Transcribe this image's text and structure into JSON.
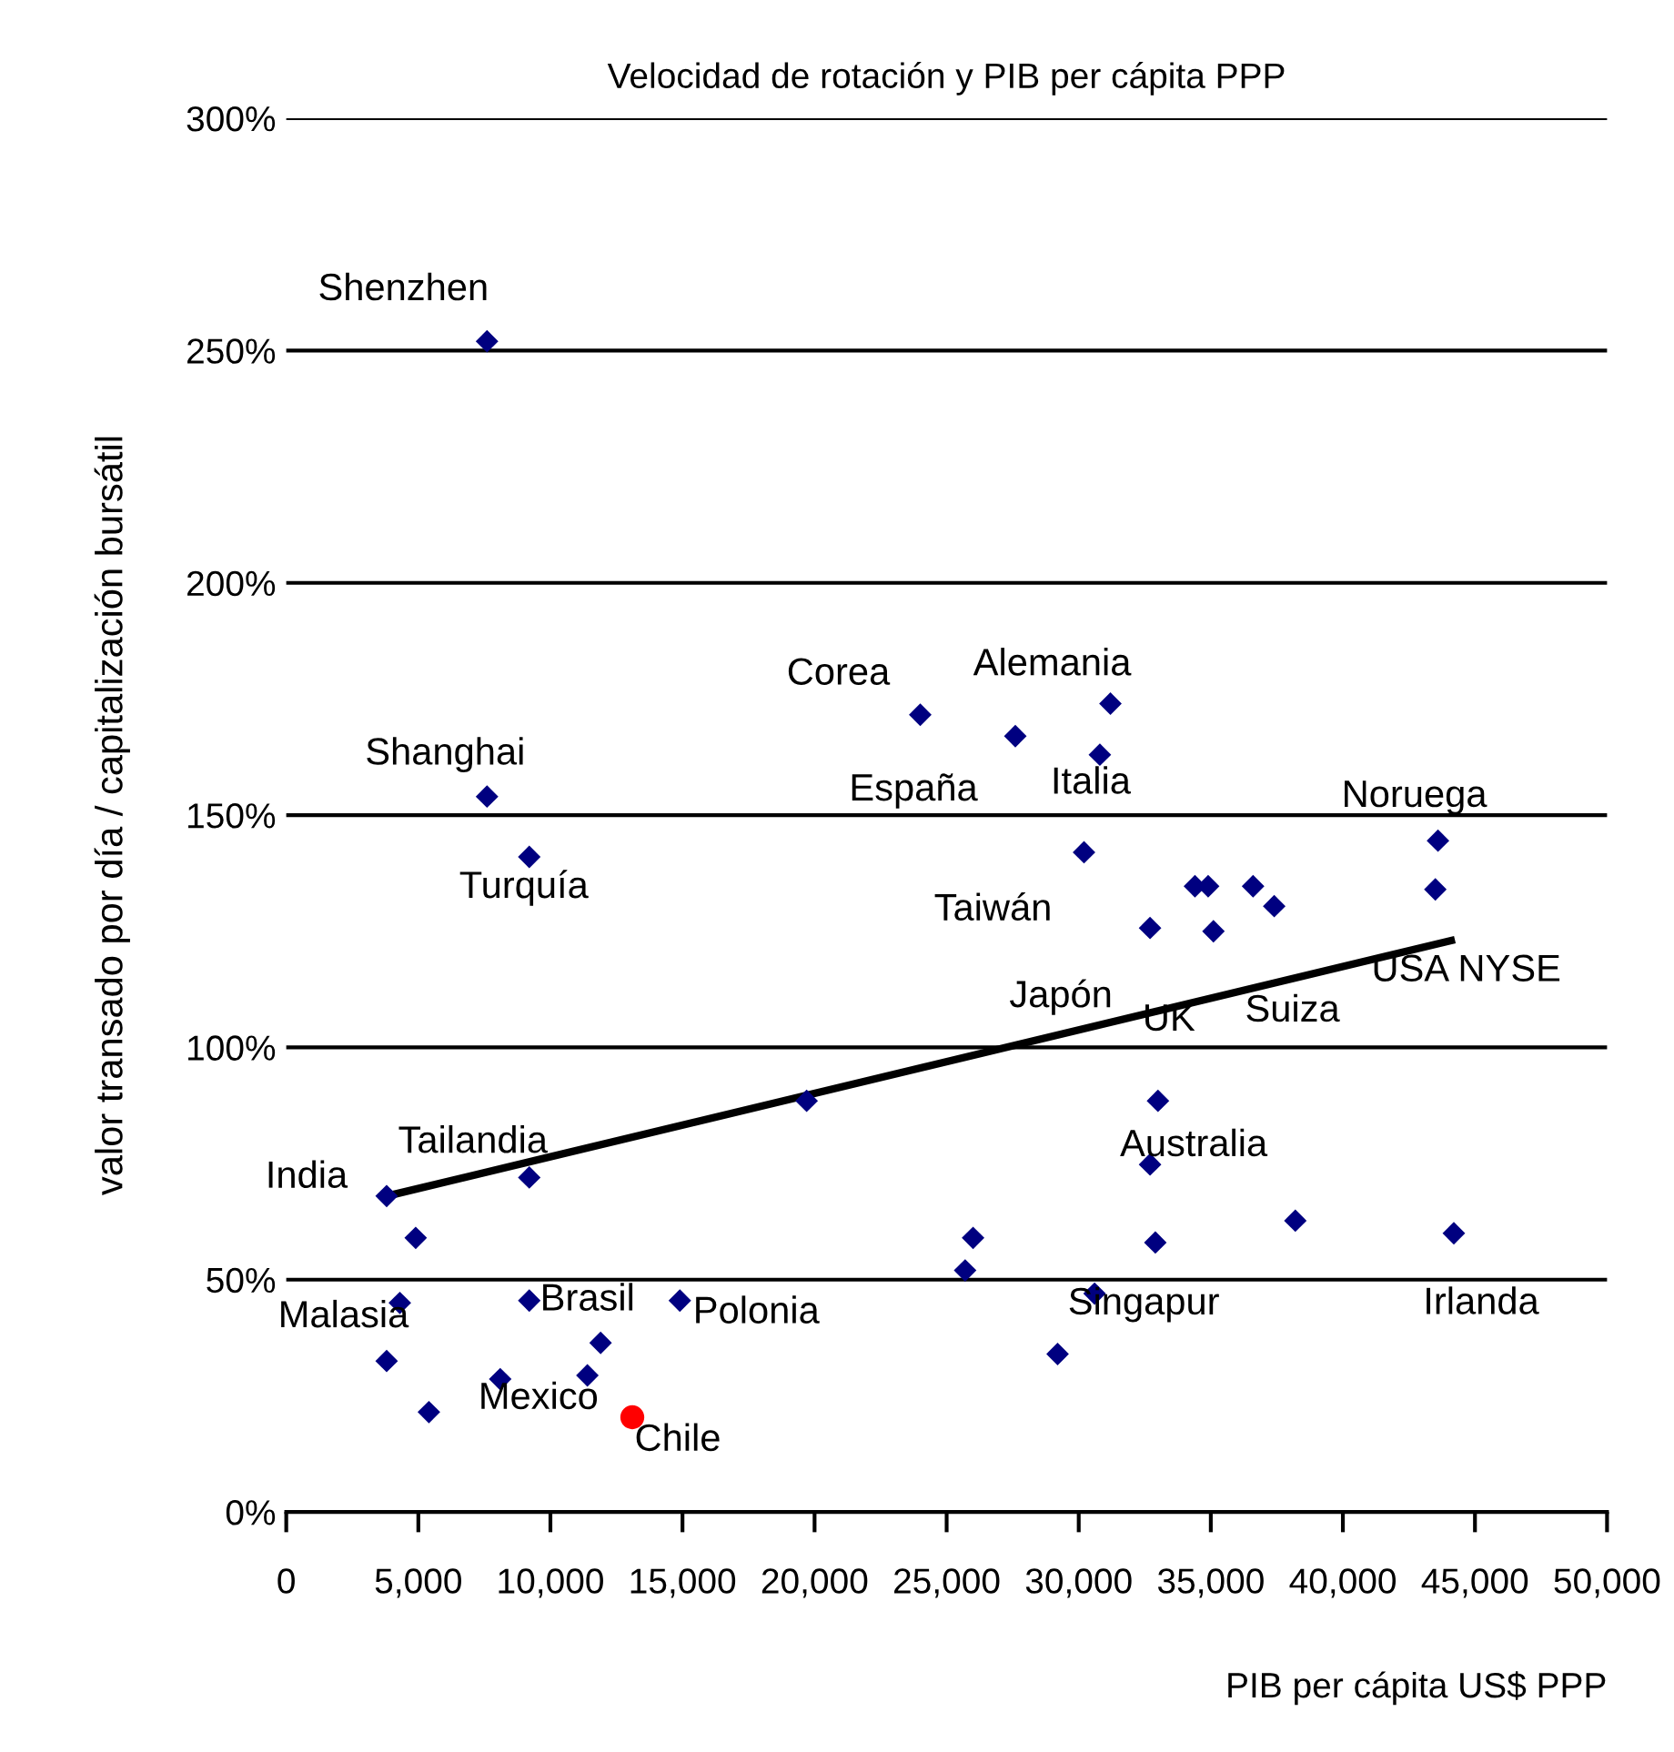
{
  "chart_data": {
    "type": "scatter",
    "title": "Velocidad de rotación y PIB per cápita PPP",
    "xlabel": "PIB per cápita US$ PPP",
    "ylabel": "valor transado por día / capitalización bursátil",
    "xlim": [
      0,
      50000
    ],
    "xticks": [
      {
        "value": 0,
        "label": "0"
      },
      {
        "value": 5000,
        "label": "5,000"
      },
      {
        "value": 10000,
        "label": "10,000"
      },
      {
        "value": 15000,
        "label": "15,000"
      },
      {
        "value": 20000,
        "label": "20,000"
      },
      {
        "value": 25000,
        "label": "25,000"
      },
      {
        "value": 30000,
        "label": "30,000"
      },
      {
        "value": 35000,
        "label": "35,000"
      },
      {
        "value": 40000,
        "label": "40,000"
      },
      {
        "value": 45000,
        "label": "45,000"
      },
      {
        "value": 50000,
        "label": "50,000"
      }
    ],
    "ylim": [
      0,
      300
    ],
    "yticks": [
      {
        "value": 0,
        "label": "0%"
      },
      {
        "value": 50,
        "label": "50%"
      },
      {
        "value": 100,
        "label": "100%"
      },
      {
        "value": 150,
        "label": "150%"
      },
      {
        "value": 200,
        "label": "200%"
      },
      {
        "value": 250,
        "label": "250%"
      },
      {
        "value": 300,
        "label": "300%"
      }
    ],
    "grid": "y",
    "legend": false,
    "series": [
      {
        "marker": "diamond",
        "color": "#000080",
        "x": [
          7600,
          7600,
          9200,
          3800,
          9200,
          4900,
          4300,
          9200,
          3800,
          5400,
          8100,
          11900,
          11400,
          14900,
          19700,
          24000,
          27600,
          31200,
          30800,
          30200,
          32700,
          34400,
          34900,
          36600,
          37400,
          35100,
          43600,
          43500,
          33000,
          32700,
          32900,
          38200,
          44200,
          26000,
          25700,
          30600,
          29200
        ],
        "values": [
          252,
          154,
          141,
          68,
          72,
          59,
          45,
          45.5,
          32.5,
          21.5,
          28.6,
          36.4,
          29.4,
          45.5,
          88.5,
          171.6,
          167,
          174,
          163,
          142,
          125.7,
          134.7,
          134.7,
          134.7,
          130.4,
          125,
          144.5,
          134,
          88.5,
          74.8,
          58,
          62.7,
          60,
          59,
          52,
          47,
          34
        ]
      },
      {
        "marker": "circle",
        "color": "#ff0000",
        "x": [
          13100
        ],
        "values": [
          20.4
        ]
      },
      {
        "type": "line",
        "marker": "none",
        "color": "#000000",
        "x": [
          3800,
          44100
        ],
        "values": [
          68,
          123
        ]
      }
    ],
    "annotations": [
      {
        "text": "Shenzhen",
        "x": 7600,
        "y": 252
      },
      {
        "text": "Corea",
        "x": 24000,
        "y": 171.6
      },
      {
        "text": "Alemania",
        "x": 31200,
        "y": 174
      },
      {
        "text": "Shanghai",
        "x": 7600,
        "y": 154
      },
      {
        "text": "España",
        "x": 27600,
        "y": 167
      },
      {
        "text": "Italia",
        "x": 30800,
        "y": 163
      },
      {
        "text": "Noruega",
        "x": 43600,
        "y": 144.5
      },
      {
        "text": "Turquía",
        "x": 9200,
        "y": 141
      },
      {
        "text": "Taiwán",
        "x": 30200,
        "y": 142
      },
      {
        "text": "Suiza",
        "x": 37400,
        "y": 130.4
      },
      {
        "text": "USA NYSE",
        "x": 43500,
        "y": 134
      },
      {
        "text": "Japón",
        "x": 32700,
        "y": 125.7
      },
      {
        "text": "UK",
        "x": 33000,
        "y": 88.5
      },
      {
        "text": "India",
        "x": 3800,
        "y": 68
      },
      {
        "text": "Tailandia",
        "x": 9200,
        "y": 72
      },
      {
        "text": "Australia",
        "x": 32700,
        "y": 74.8
      },
      {
        "text": "Malasia",
        "x": 4300,
        "y": 45
      },
      {
        "text": "Brasil",
        "x": 9200,
        "y": 45.5
      },
      {
        "text": "Polonia",
        "x": 14900,
        "y": 45.5
      },
      {
        "text": "Singapur",
        "x": 30600,
        "y": 47
      },
      {
        "text": "Irlanda",
        "x": 44200,
        "y": 60
      },
      {
        "text": "Mexico",
        "x": 8100,
        "y": 28.6
      },
      {
        "text": "Chile",
        "x": 13100,
        "y": 20.4
      }
    ]
  }
}
